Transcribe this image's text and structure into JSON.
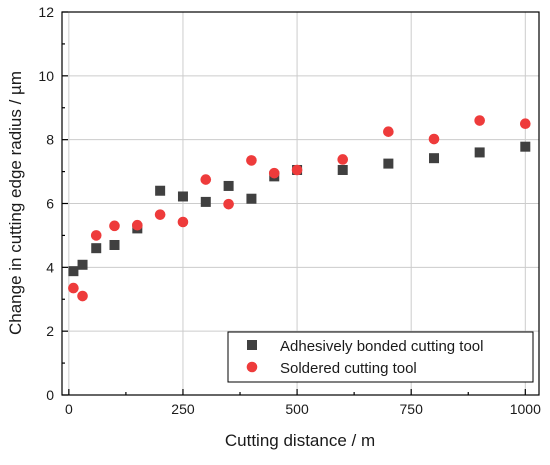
{
  "chart_data": {
    "type": "scatter",
    "xlabel": "Cutting distance / m",
    "ylabel": "Change in cutting edge radius / µm",
    "xlim": [
      -15,
      1030
    ],
    "ylim": [
      0,
      12
    ],
    "xticks": [
      0,
      250,
      500,
      750,
      1000
    ],
    "yticks": [
      0,
      2,
      4,
      6,
      8,
      10,
      12
    ],
    "grid": true,
    "legend_position": "bottom-right",
    "series": [
      {
        "name": "Adhesively bonded cutting tool",
        "marker": "square",
        "color": "#404040",
        "x": [
          10,
          30,
          60,
          100,
          150,
          200,
          250,
          300,
          350,
          400,
          450,
          500,
          600,
          700,
          800,
          900,
          1000
        ],
        "y": [
          3.88,
          4.08,
          4.6,
          4.7,
          5.22,
          6.4,
          6.22,
          6.05,
          6.55,
          6.15,
          6.85,
          7.05,
          7.05,
          7.25,
          7.42,
          7.6,
          7.78
        ]
      },
      {
        "name": "Soldered cutting tool",
        "marker": "circle",
        "color": "#ee3b3b",
        "x": [
          10,
          30,
          60,
          100,
          150,
          200,
          250,
          300,
          350,
          400,
          450,
          500,
          600,
          700,
          800,
          900,
          1000
        ],
        "y": [
          3.35,
          3.1,
          5.0,
          5.3,
          5.32,
          5.65,
          5.42,
          6.75,
          5.98,
          7.35,
          6.95,
          7.05,
          7.38,
          8.25,
          8.02,
          8.6,
          8.5
        ]
      }
    ]
  }
}
